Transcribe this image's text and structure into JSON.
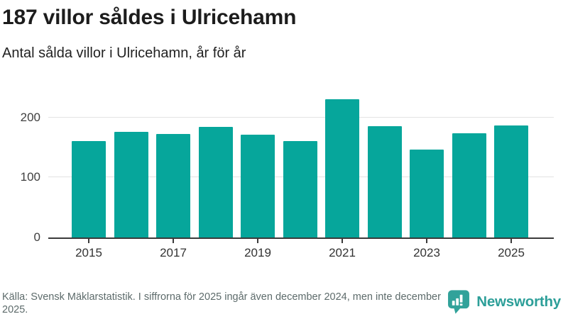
{
  "header": {
    "title": "187 villor såldes i Ulricehamn",
    "subtitle": "Antal sålda villor i Ulricehamn, år för år"
  },
  "chart_data": {
    "type": "bar",
    "title": "187 villor såldes i Ulricehamn",
    "subtitle": "Antal sålda villor i Ulricehamn, år för år",
    "categories": [
      "2015",
      "2016",
      "2017",
      "2018",
      "2019",
      "2020",
      "2021",
      "2022",
      "2023",
      "2024",
      "2025"
    ],
    "values": [
      161,
      176,
      172,
      184,
      171,
      161,
      230,
      185,
      146,
      174,
      187
    ],
    "xtick_labels": [
      "2015",
      "2017",
      "2019",
      "2021",
      "2023",
      "2025"
    ],
    "yticks": [
      0,
      100,
      200
    ],
    "ylim": [
      0,
      242
    ],
    "xlabel": "",
    "ylabel": "",
    "grid": true,
    "legend": false,
    "bar_color": "#06a69b",
    "gridline_color": "#e3e3e3",
    "axis_color": "#3a3a3a"
  },
  "footer": {
    "source": "Källa: Svensk Mäklarstatistik. I siffrorna för 2025 ingår även december 2024, men inte december 2025.",
    "brand": "Newsworthy"
  },
  "colors": {
    "bar": "#06a69b",
    "brand": "#2d9f99",
    "title": "#1c1c1c",
    "muted_text": "#5d6b6b"
  }
}
